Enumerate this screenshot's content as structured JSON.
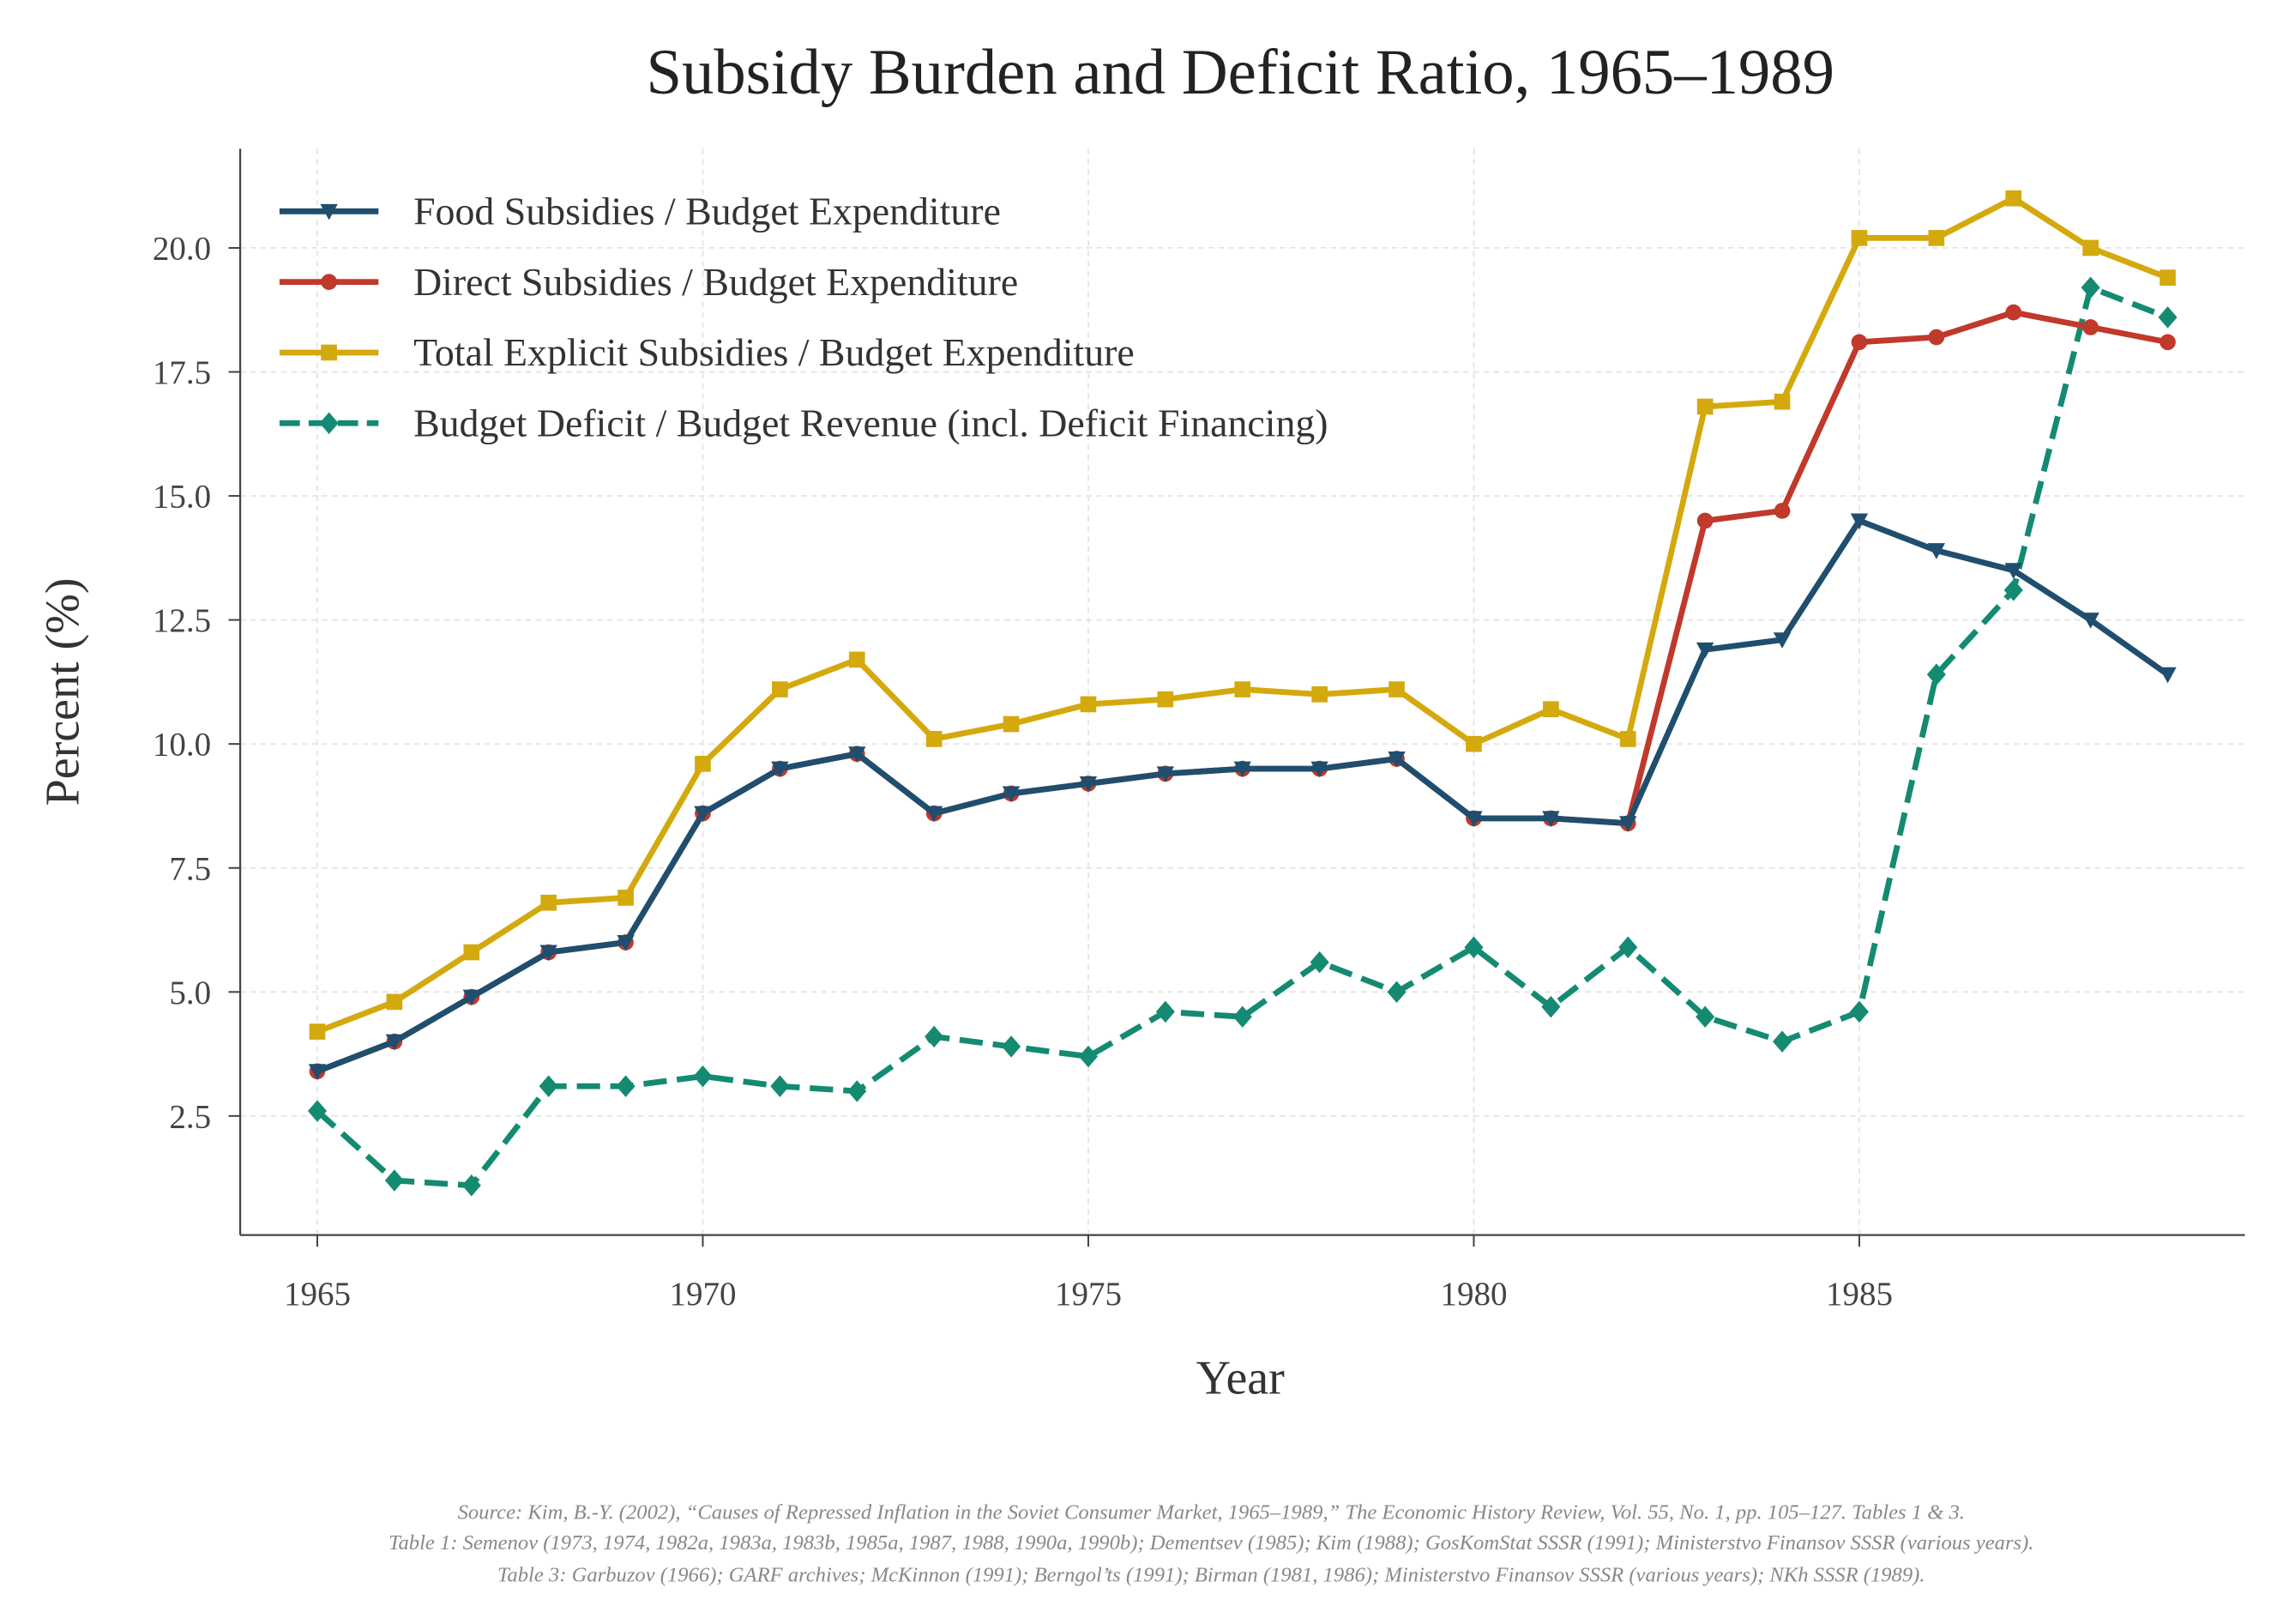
{
  "chart_data": {
    "type": "line",
    "title": "Subsidy Burden and Deficit Ratio, 1965–1989",
    "xlabel": "Year",
    "ylabel": "Percent (%)",
    "xlim": [
      1964,
      1990
    ],
    "ylim": [
      0.1,
      22
    ],
    "grid": true,
    "legend_position": "top-left",
    "x_ticks": [
      1965,
      1970,
      1975,
      1980,
      1985
    ],
    "y_ticks": [
      "2.5",
      "5.0",
      "7.5",
      "10.0",
      "12.5",
      "15.0",
      "17.5",
      "20.0"
    ],
    "x": [
      1965,
      1966,
      1967,
      1968,
      1969,
      1970,
      1971,
      1972,
      1973,
      1974,
      1975,
      1976,
      1977,
      1978,
      1979,
      1980,
      1981,
      1982,
      1983,
      1984,
      1985,
      1986,
      1987,
      1988,
      1989
    ],
    "series": [
      {
        "name": "Food Subsidies / Budget Expenditure",
        "color": "#1f4e6e",
        "marker": "triangle-down",
        "dashed": false,
        "values": [
          3.4,
          4.0,
          4.9,
          5.8,
          6.0,
          8.6,
          9.5,
          9.8,
          8.6,
          9.0,
          9.2,
          9.4,
          9.5,
          9.5,
          9.7,
          8.5,
          8.5,
          8.4,
          11.9,
          12.1,
          14.5,
          13.9,
          13.5,
          12.5,
          11.4
        ]
      },
      {
        "name": "Direct Subsidies / Budget Expenditure",
        "color": "#c0392b",
        "marker": "circle",
        "dashed": false,
        "values": [
          3.4,
          4.0,
          4.9,
          5.8,
          6.0,
          8.6,
          9.5,
          9.8,
          8.6,
          9.0,
          9.2,
          9.4,
          9.5,
          9.5,
          9.7,
          8.5,
          8.5,
          8.4,
          14.5,
          14.7,
          18.1,
          18.2,
          18.7,
          18.4,
          18.1
        ]
      },
      {
        "name": "Total Explicit Subsidies / Budget Expenditure",
        "color": "#d4a90e",
        "marker": "square",
        "dashed": false,
        "values": [
          4.2,
          4.8,
          5.8,
          6.8,
          6.9,
          9.6,
          11.1,
          11.7,
          10.1,
          10.4,
          10.8,
          10.9,
          11.1,
          11.0,
          11.1,
          10.0,
          10.7,
          10.1,
          16.8,
          16.9,
          20.2,
          20.2,
          21.0,
          20.0,
          19.4
        ]
      },
      {
        "name": "Budget Deficit / Budget Revenue (incl. Deficit Financing)",
        "color": "#148a72",
        "marker": "diamond",
        "dashed": true,
        "values": [
          2.6,
          1.2,
          1.1,
          3.1,
          3.1,
          3.3,
          3.1,
          3.0,
          4.1,
          3.9,
          3.7,
          4.6,
          4.5,
          5.6,
          5.0,
          5.9,
          4.7,
          5.9,
          4.5,
          4.0,
          4.6,
          11.4,
          13.1,
          19.2,
          18.6
        ]
      }
    ]
  },
  "footer": {
    "line1": "Source: Kim, B.-Y. (2002), “Causes of Repressed Inflation in the Soviet Consumer Market, 1965–1989,” The Economic History Review, Vol. 55, No. 1, pp. 105–127. Tables 1 & 3.",
    "line2": "Table 1: Semenov (1973, 1974, 1982a, 1983a, 1983b, 1985a, 1987, 1988, 1990a, 1990b); Dementsev (1985); Kim (1988); GosKomStat SSSR (1991); Ministerstvo Finansov SSSR (various years).",
    "line3": "Table 3: Garbuzov (1966); GARF archives; McKinnon (1991); Berngol’ts (1991); Birman (1981, 1986); Ministerstvo Finansov SSSR (various years); NKh SSSR (1989)."
  }
}
